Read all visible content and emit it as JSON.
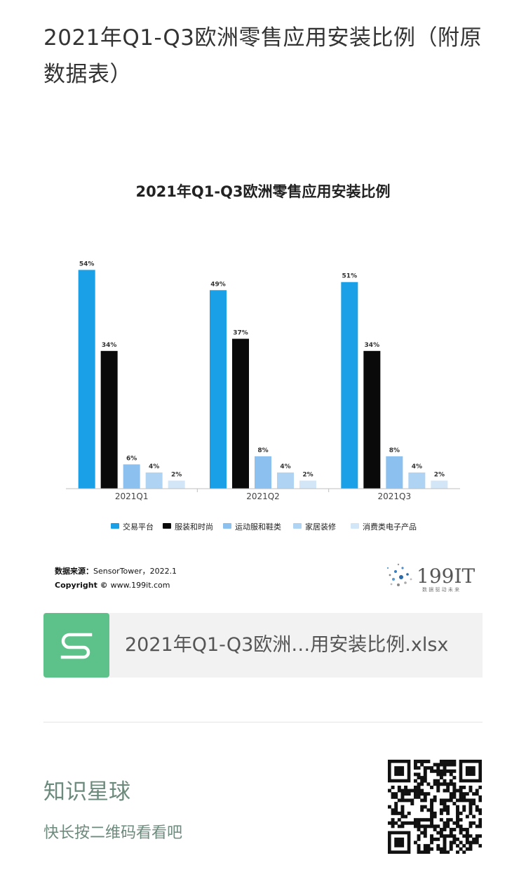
{
  "article": {
    "title": "2021年Q1-Q3欧洲零售应用安装比例（附原数据表）"
  },
  "chart_data": {
    "type": "bar",
    "title": "2021年Q1-Q3欧洲零售应用安装比例",
    "categories": [
      "2021Q1",
      "2021Q2",
      "2021Q3"
    ],
    "ylim": [
      0,
      60
    ],
    "grid": false,
    "legend_position": "bottom",
    "series": [
      {
        "name": "交易平台",
        "color": "#1aa0e6",
        "values": [
          54,
          49,
          51
        ],
        "labels": [
          "54%",
          "49%",
          "51%"
        ]
      },
      {
        "name": "服装和时尚",
        "color": "#0a0a0a",
        "values": [
          34,
          37,
          34
        ],
        "labels": [
          "34%",
          "37%",
          "34%"
        ]
      },
      {
        "name": "运动服和鞋类",
        "color": "#8cc1ef",
        "values": [
          6,
          8,
          8
        ],
        "labels": [
          "6%",
          "8%",
          "8%"
        ]
      },
      {
        "name": "家居装修",
        "color": "#afd3f3",
        "values": [
          4,
          4,
          4
        ],
        "labels": [
          "4%",
          "4%",
          "4%"
        ]
      },
      {
        "name": "消费类电子产品",
        "color": "#d2e6f8",
        "values": [
          2,
          2,
          2
        ],
        "labels": [
          "2%",
          "2%",
          "2%"
        ]
      }
    ],
    "source_label": "数据来源：",
    "source_text": "SensorTower，2022.1",
    "copyright_label": "Copyright ©",
    "copyright_text": "www.199it.com",
    "logo_text": "199IT",
    "logo_subtext": "数 据 驱 动 未 来"
  },
  "attachment": {
    "icon": "spreadsheet-s-icon",
    "icon_color": "#5cc28a",
    "file_name": "2021年Q1-Q3欧洲…用安装比例.xlsx"
  },
  "promo": {
    "title": "知识星球",
    "subtitle": "快长按二维码看看吧",
    "qr_icon": "qr-code"
  }
}
